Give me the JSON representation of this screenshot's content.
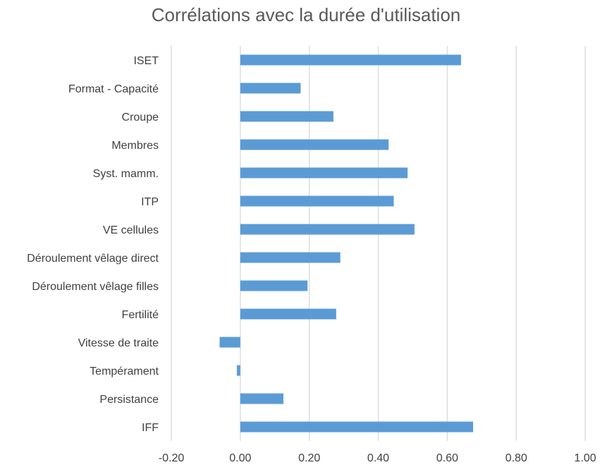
{
  "chart_data": {
    "type": "bar",
    "orientation": "horizontal",
    "title": "Corrélations avec la durée d'utilisation",
    "xlabel": "",
    "ylabel": "",
    "categories": [
      "ISET",
      "Format - Capacité",
      "Croupe",
      "Membres",
      "Syst. mamm.",
      "ITP",
      "VE cellules",
      "Déroulement vêlage direct",
      "Déroulement vêlage filles",
      "Fertilité",
      "Vitesse de traite",
      "Tempérament",
      "Persistance",
      "IFF"
    ],
    "values": [
      0.64,
      0.175,
      0.27,
      0.43,
      0.485,
      0.445,
      0.505,
      0.29,
      0.195,
      0.278,
      -0.06,
      -0.01,
      0.125,
      0.675
    ],
    "xlim": [
      -0.2,
      1.0
    ],
    "ticks": [
      "-0.20",
      "0.00",
      "0.20",
      "0.40",
      "0.60",
      "0.80",
      "1.00"
    ],
    "tick_values": [
      -0.2,
      0.0,
      0.2,
      0.4,
      0.6,
      0.8,
      1.0
    ],
    "grid": true,
    "legend": "none",
    "bar_color": "#5b9bd5",
    "grid_color": "#d9d9d9"
  }
}
